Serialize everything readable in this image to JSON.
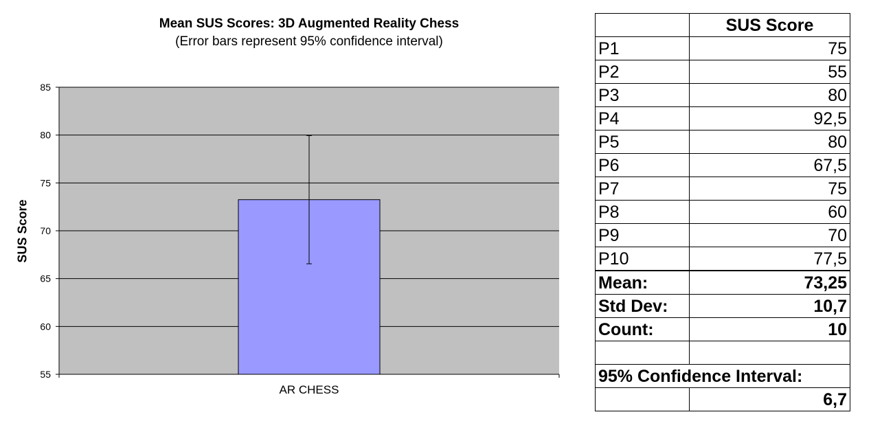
{
  "chart_data": {
    "type": "bar",
    "title": "Mean SUS Scores: 3D Augmented Reality Chess",
    "subtitle": "(Error bars represent 95% confidence interval)",
    "ylabel": "SUS Score",
    "xlabel": "",
    "categories": [
      "AR CHESS"
    ],
    "values": [
      73.25
    ],
    "error": [
      6.7
    ],
    "ylim": [
      55,
      85
    ],
    "yticks": [
      55,
      60,
      65,
      70,
      75,
      80,
      85
    ],
    "grid": true,
    "colors": {
      "bar": "#9999ff",
      "plot_bg": "#c0c0c0",
      "grid": "#000000"
    }
  },
  "table": {
    "header": "SUS Score",
    "rows": [
      {
        "label": "P1",
        "value": "75"
      },
      {
        "label": "P2",
        "value": "55"
      },
      {
        "label": "P3",
        "value": "80"
      },
      {
        "label": "P4",
        "value": "92,5"
      },
      {
        "label": "P5",
        "value": "80"
      },
      {
        "label": "P6",
        "value": "67,5"
      },
      {
        "label": "P7",
        "value": "75"
      },
      {
        "label": "P8",
        "value": "60"
      },
      {
        "label": "P9",
        "value": "70"
      },
      {
        "label": "P10",
        "value": "77,5"
      }
    ],
    "stats": [
      {
        "label": "Mean:",
        "value": "73,25"
      },
      {
        "label": "Std Dev:",
        "value": "10,7"
      },
      {
        "label": "Count:",
        "value": "10"
      }
    ],
    "ci_label": "95% Confidence Interval:",
    "ci_value": "6,7"
  }
}
